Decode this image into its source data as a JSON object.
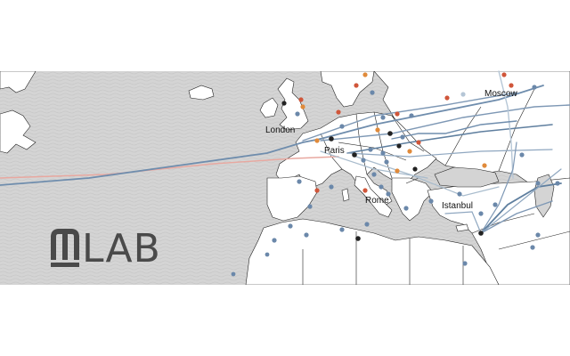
{
  "logo": {
    "text": "LAB",
    "color": "#4a4a4a"
  },
  "cities": [
    {
      "name": "London"
    },
    {
      "name": "Paris"
    },
    {
      "name": "Rome"
    },
    {
      "name": "Istanbul"
    },
    {
      "name": "Moscow"
    }
  ],
  "colors": {
    "ocean_hatch": "#c8c8c8",
    "land": "#ffffff",
    "border": "#222222",
    "route": "#5f7f9f",
    "route_light": "#a9bccd",
    "route_red": "#e8a8a0",
    "dot_blue": "#6b88aa",
    "dot_red": "#d0563a",
    "dot_orange": "#e08a3a",
    "dot_dark": "#222222"
  },
  "icons": {
    "logo_glyph": "m-lab-glyph-icon"
  }
}
